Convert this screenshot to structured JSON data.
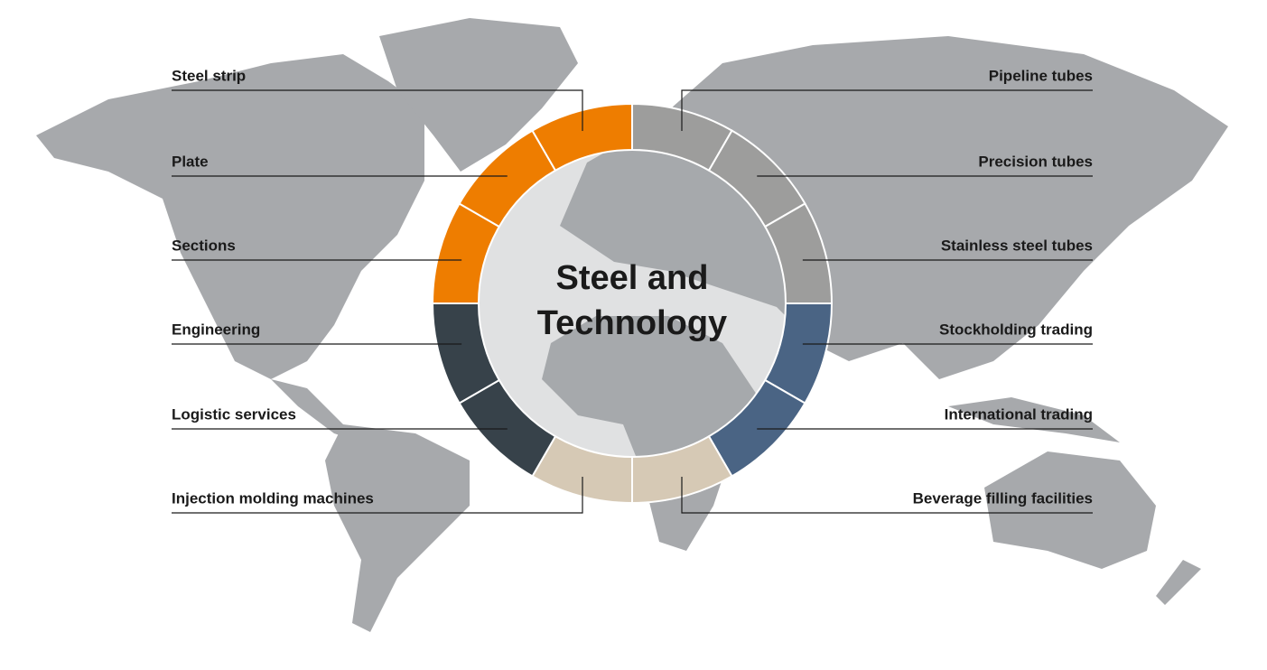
{
  "title_lines": [
    "Steel and",
    "Technology"
  ],
  "segments": [
    {
      "label": "Pipeline tubes",
      "color": "#9d9d9c"
    },
    {
      "label": "Precision tubes",
      "color": "#9d9d9c"
    },
    {
      "label": "Stainless steel tubes",
      "color": "#9d9d9c"
    },
    {
      "label": "Stockholding trading",
      "color": "#4a6484"
    },
    {
      "label": "International trading",
      "color": "#4a6484"
    },
    {
      "label": "Beverage filling facilities",
      "color": "#d6c9b5"
    },
    {
      "label": "Injection molding machines",
      "color": "#d6c9b5"
    },
    {
      "label": "Logistic services",
      "color": "#37424a"
    },
    {
      "label": "Engineering",
      "color": "#37424a"
    },
    {
      "label": "Sections",
      "color": "#ee7d00"
    },
    {
      "label": "Plate",
      "color": "#ee7d00"
    },
    {
      "label": "Steel strip",
      "color": "#ee7d00"
    }
  ]
}
